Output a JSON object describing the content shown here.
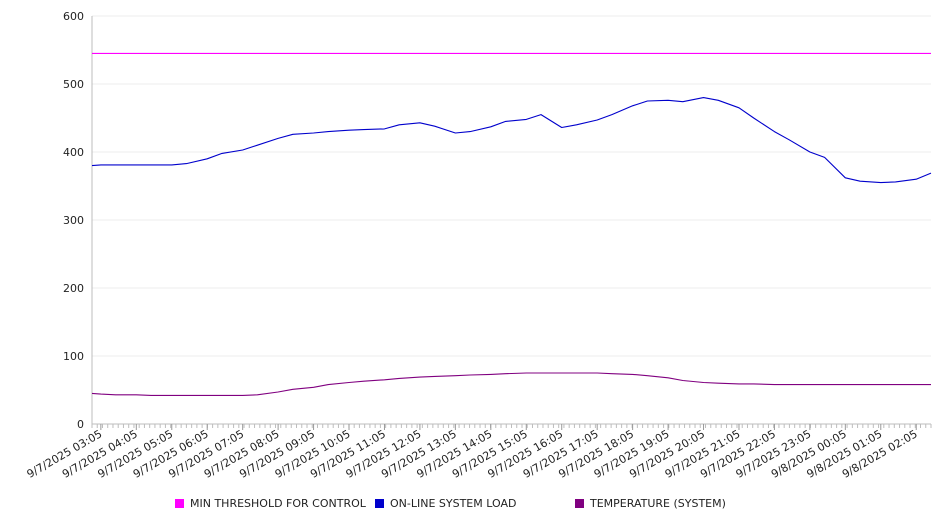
{
  "chart_data": {
    "type": "line",
    "title": "",
    "xlabel": "",
    "ylabel": "",
    "ylim": [
      0,
      600
    ],
    "yticks": [
      0,
      100,
      200,
      300,
      400,
      500,
      600
    ],
    "grid": "horizontal",
    "legend_position": "bottom",
    "x_tick_labels": [
      "9/7/2025 03:05",
      "9/7/2025 04:05",
      "9/7/2025 05:05",
      "9/7/2025 06:05",
      "9/7/2025 07:05",
      "9/7/2025 08:05",
      "9/7/2025 09:05",
      "9/7/2025 10:05",
      "9/7/2025 11:05",
      "9/7/2025 12:05",
      "9/7/2025 13:05",
      "9/7/2025 14:05",
      "9/7/2025 15:05",
      "9/7/2025 16:05",
      "9/7/2025 17:05",
      "9/7/2025 18:05",
      "9/7/2025 19:05",
      "9/7/2025 20:05",
      "9/7/2025 21:05",
      "9/7/2025 22:05",
      "9/7/2025 23:05",
      "9/8/2025 00:05",
      "9/8/2025 01:05",
      "9/8/2025 02:05"
    ],
    "x": [
      "9/7/2025 02:50",
      "9/7/2025 03:05",
      "9/7/2025 03:30",
      "9/7/2025 04:05",
      "9/7/2025 04:30",
      "9/7/2025 05:05",
      "9/7/2025 05:30",
      "9/7/2025 06:05",
      "9/7/2025 06:30",
      "9/7/2025 07:05",
      "9/7/2025 07:30",
      "9/7/2025 08:05",
      "9/7/2025 08:30",
      "9/7/2025 09:05",
      "9/7/2025 09:30",
      "9/7/2025 10:05",
      "9/7/2025 10:30",
      "9/7/2025 11:05",
      "9/7/2025 11:30",
      "9/7/2025 12:05",
      "9/7/2025 12:30",
      "9/7/2025 13:05",
      "9/7/2025 13:30",
      "9/7/2025 14:05",
      "9/7/2025 14:30",
      "9/7/2025 15:05",
      "9/7/2025 15:30",
      "9/7/2025 16:05",
      "9/7/2025 16:30",
      "9/7/2025 17:05",
      "9/7/2025 17:30",
      "9/7/2025 18:05",
      "9/7/2025 18:30",
      "9/7/2025 19:05",
      "9/7/2025 19:30",
      "9/7/2025 20:05",
      "9/7/2025 20:30",
      "9/7/2025 21:05",
      "9/7/2025 21:30",
      "9/7/2025 22:05",
      "9/7/2025 22:30",
      "9/7/2025 23:05",
      "9/7/2025 23:30",
      "9/8/2025 00:05",
      "9/8/2025 00:30",
      "9/8/2025 01:05",
      "9/8/2025 01:30",
      "9/8/2025 02:05",
      "9/8/2025 02:30"
    ],
    "series": [
      {
        "name": "MIN THRESHOLD FOR CONTROL",
        "color": "#ff00ff",
        "values": [
          545,
          545,
          545,
          545,
          545,
          545,
          545,
          545,
          545,
          545,
          545,
          545,
          545,
          545,
          545,
          545,
          545,
          545,
          545,
          545,
          545,
          545,
          545,
          545,
          545,
          545,
          545,
          545,
          545,
          545,
          545,
          545,
          545,
          545,
          545,
          545,
          545,
          545,
          545,
          545,
          545,
          545,
          545,
          545,
          545,
          545,
          545,
          545,
          545
        ]
      },
      {
        "name": "ON-LINE SYSTEM LOAD",
        "color": "#0000cc",
        "values": [
          380,
          381,
          381,
          381,
          381,
          381,
          383,
          390,
          398,
          403,
          410,
          420,
          426,
          428,
          430,
          432,
          433,
          434,
          440,
          443,
          438,
          428,
          430,
          437,
          445,
          448,
          455,
          436,
          440,
          447,
          455,
          468,
          475,
          476,
          474,
          480,
          476,
          465,
          450,
          430,
          418,
          400,
          392,
          362,
          357,
          355,
          356,
          360,
          369
        ]
      },
      {
        "name": "TEMPERATURE (SYSTEM)",
        "color": "#800080",
        "values": [
          45,
          44,
          43,
          43,
          42,
          42,
          42,
          42,
          42,
          42,
          43,
          47,
          51,
          54,
          58,
          61,
          63,
          65,
          67,
          69,
          70,
          71,
          72,
          73,
          74,
          75,
          75,
          75,
          75,
          75,
          74,
          73,
          71,
          68,
          64,
          61,
          60,
          59,
          59,
          58,
          58,
          58,
          58,
          58,
          58,
          58,
          58,
          58,
          58
        ]
      }
    ]
  }
}
